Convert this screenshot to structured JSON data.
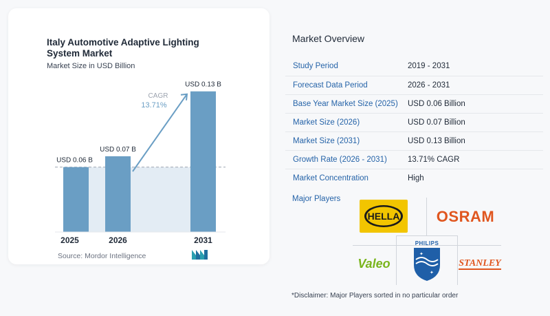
{
  "chart_data": {
    "type": "bar",
    "title": "Italy Automotive Adaptive Lighting System Market",
    "subtitle": "Market Size in USD Billion",
    "categories": [
      "2025",
      "2026",
      "2031"
    ],
    "values": [
      0.06,
      0.07,
      0.13
    ],
    "data_labels": [
      "USD 0.06 B",
      "USD 0.07 B",
      "USD 0.13 B"
    ],
    "cagr_label": "CAGR",
    "cagr_value": "13.71%",
    "ylim": [
      0,
      0.14
    ],
    "colors": {
      "bar": "#6a9ec4",
      "shade": "#e3ecf4",
      "arrow": "#6a9ec4"
    }
  },
  "source": "Source: Mordor Intelligence",
  "overview": {
    "title": "Market Overview",
    "rows": [
      {
        "key": "Study Period",
        "value": "2019 - 2031"
      },
      {
        "key": "Forecast Data Period",
        "value": "2026 - 2031"
      },
      {
        "key": "Base Year Market Size (2025)",
        "value": "USD 0.06 Billion"
      },
      {
        "key": "Market Size (2026)",
        "value": "USD 0.07 Billion"
      },
      {
        "key": "Market Size (2031)",
        "value": "USD 0.13 Billion"
      },
      {
        "key": "Growth Rate (2026 - 2031)",
        "value": "13.71% CAGR"
      },
      {
        "key": "Market Concentration",
        "value": "High"
      }
    ]
  },
  "players": {
    "title": "Major Players",
    "logos": [
      "HELLA",
      "OSRAM",
      "PHILIPS",
      "Valeo",
      "STANLEY"
    ]
  },
  "disclaimer": "*Disclaimer: Major Players sorted in no particular order"
}
